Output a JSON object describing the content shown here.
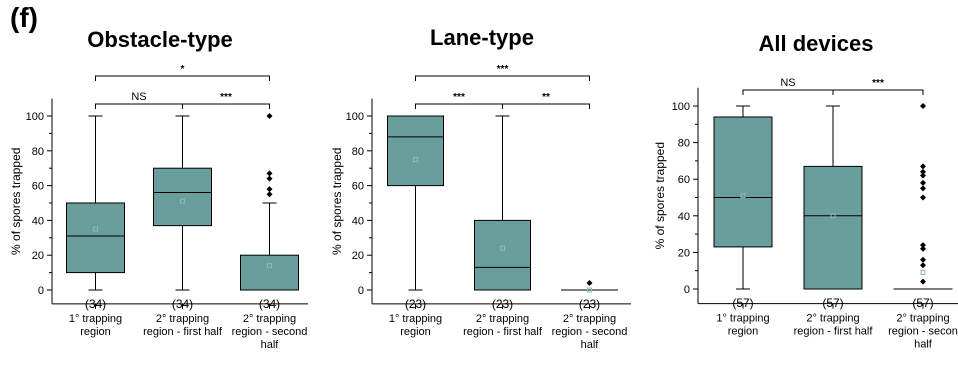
{
  "figure": {
    "panel_label": "(f)"
  },
  "colors": {
    "box_fill": "#6a9e9d",
    "axis": "#000000",
    "mean_marker": "#8fb9b8"
  },
  "chart_data": [
    {
      "type": "box",
      "title": "Obstacle-type",
      "ylabel": "% of spores trapped",
      "ylim": [
        -8,
        110
      ],
      "yticks": [
        0,
        20,
        40,
        60,
        80,
        100
      ],
      "grid": false,
      "categories": [
        [
          "1° trapping",
          "region"
        ],
        [
          "2° trapping",
          "region - first half"
        ],
        [
          "2° trapping",
          "region - second",
          "half"
        ]
      ],
      "boxes": [
        {
          "min": 0,
          "q1": 10,
          "median": 31,
          "q3": 50,
          "max": 100,
          "mean": 35,
          "outliers": []
        },
        {
          "min": 0,
          "q1": 37,
          "median": 56,
          "q3": 70,
          "max": 100,
          "mean": 51,
          "outliers": []
        },
        {
          "min": 0,
          "q1": 0,
          "median": 0,
          "q3": 20,
          "max": 50,
          "mean": 14,
          "outliers": [
            55,
            58,
            64,
            67,
            100
          ]
        }
      ],
      "counts": [
        "(34)",
        "(34)",
        "(34)"
      ],
      "significance": [
        {
          "from": 0,
          "to": 1,
          "label": "NS",
          "level": 1
        },
        {
          "from": 1,
          "to": 2,
          "label": "***",
          "level": 1
        },
        {
          "from": 0,
          "to": 2,
          "label": "*",
          "level": 2
        }
      ]
    },
    {
      "type": "box",
      "title": "Lane-type",
      "ylabel": "% of spores trapped",
      "ylim": [
        -8,
        110
      ],
      "yticks": [
        0,
        20,
        40,
        60,
        80,
        100
      ],
      "grid": false,
      "categories": [
        [
          "1° trapping",
          "region"
        ],
        [
          "2° trapping",
          "region - first half"
        ],
        [
          "2° trapping",
          "region - second",
          "half"
        ]
      ],
      "boxes": [
        {
          "min": 0,
          "q1": 60,
          "median": 88,
          "q3": 100,
          "max": 100,
          "mean": 75,
          "outliers": []
        },
        {
          "min": 0,
          "q1": 0,
          "median": 13,
          "q3": 40,
          "max": 100,
          "mean": 24,
          "outliers": []
        },
        {
          "min": 0,
          "q1": 0,
          "median": 0,
          "q3": 0,
          "max": 0,
          "mean": 0,
          "outliers": [
            4
          ]
        }
      ],
      "counts": [
        "(23)",
        "(23)",
        "(23)"
      ],
      "significance": [
        {
          "from": 0,
          "to": 1,
          "label": "***",
          "level": 1
        },
        {
          "from": 1,
          "to": 2,
          "label": "**",
          "level": 1
        },
        {
          "from": 0,
          "to": 2,
          "label": "***",
          "level": 2
        }
      ]
    },
    {
      "type": "box",
      "title": "All devices",
      "ylabel": "% of spores trapped",
      "ylim": [
        -8,
        110
      ],
      "yticks": [
        0,
        20,
        40,
        60,
        80,
        100
      ],
      "grid": false,
      "categories": [
        [
          "1° trapping",
          "region"
        ],
        [
          "2° trapping",
          "region - first half"
        ],
        [
          "2° trapping",
          "region - secon",
          "half"
        ]
      ],
      "boxes": [
        {
          "min": 0,
          "q1": 23,
          "median": 50,
          "q3": 94,
          "max": 100,
          "mean": 51,
          "outliers": []
        },
        {
          "min": 0,
          "q1": 0,
          "median": 40,
          "q3": 67,
          "max": 100,
          "mean": 40,
          "outliers": []
        },
        {
          "min": 0,
          "q1": 0,
          "median": 0,
          "q3": 0,
          "max": 0,
          "mean": 9,
          "outliers": [
            4,
            13,
            16,
            22,
            24,
            50,
            55,
            58,
            62,
            64,
            67,
            100
          ]
        }
      ],
      "counts": [
        "(57)",
        "(57)",
        "(57)"
      ],
      "significance": [
        {
          "from": 0,
          "to": 1,
          "label": "NS",
          "level": 1
        },
        {
          "from": 1,
          "to": 2,
          "label": "***",
          "level": 1
        }
      ]
    }
  ]
}
